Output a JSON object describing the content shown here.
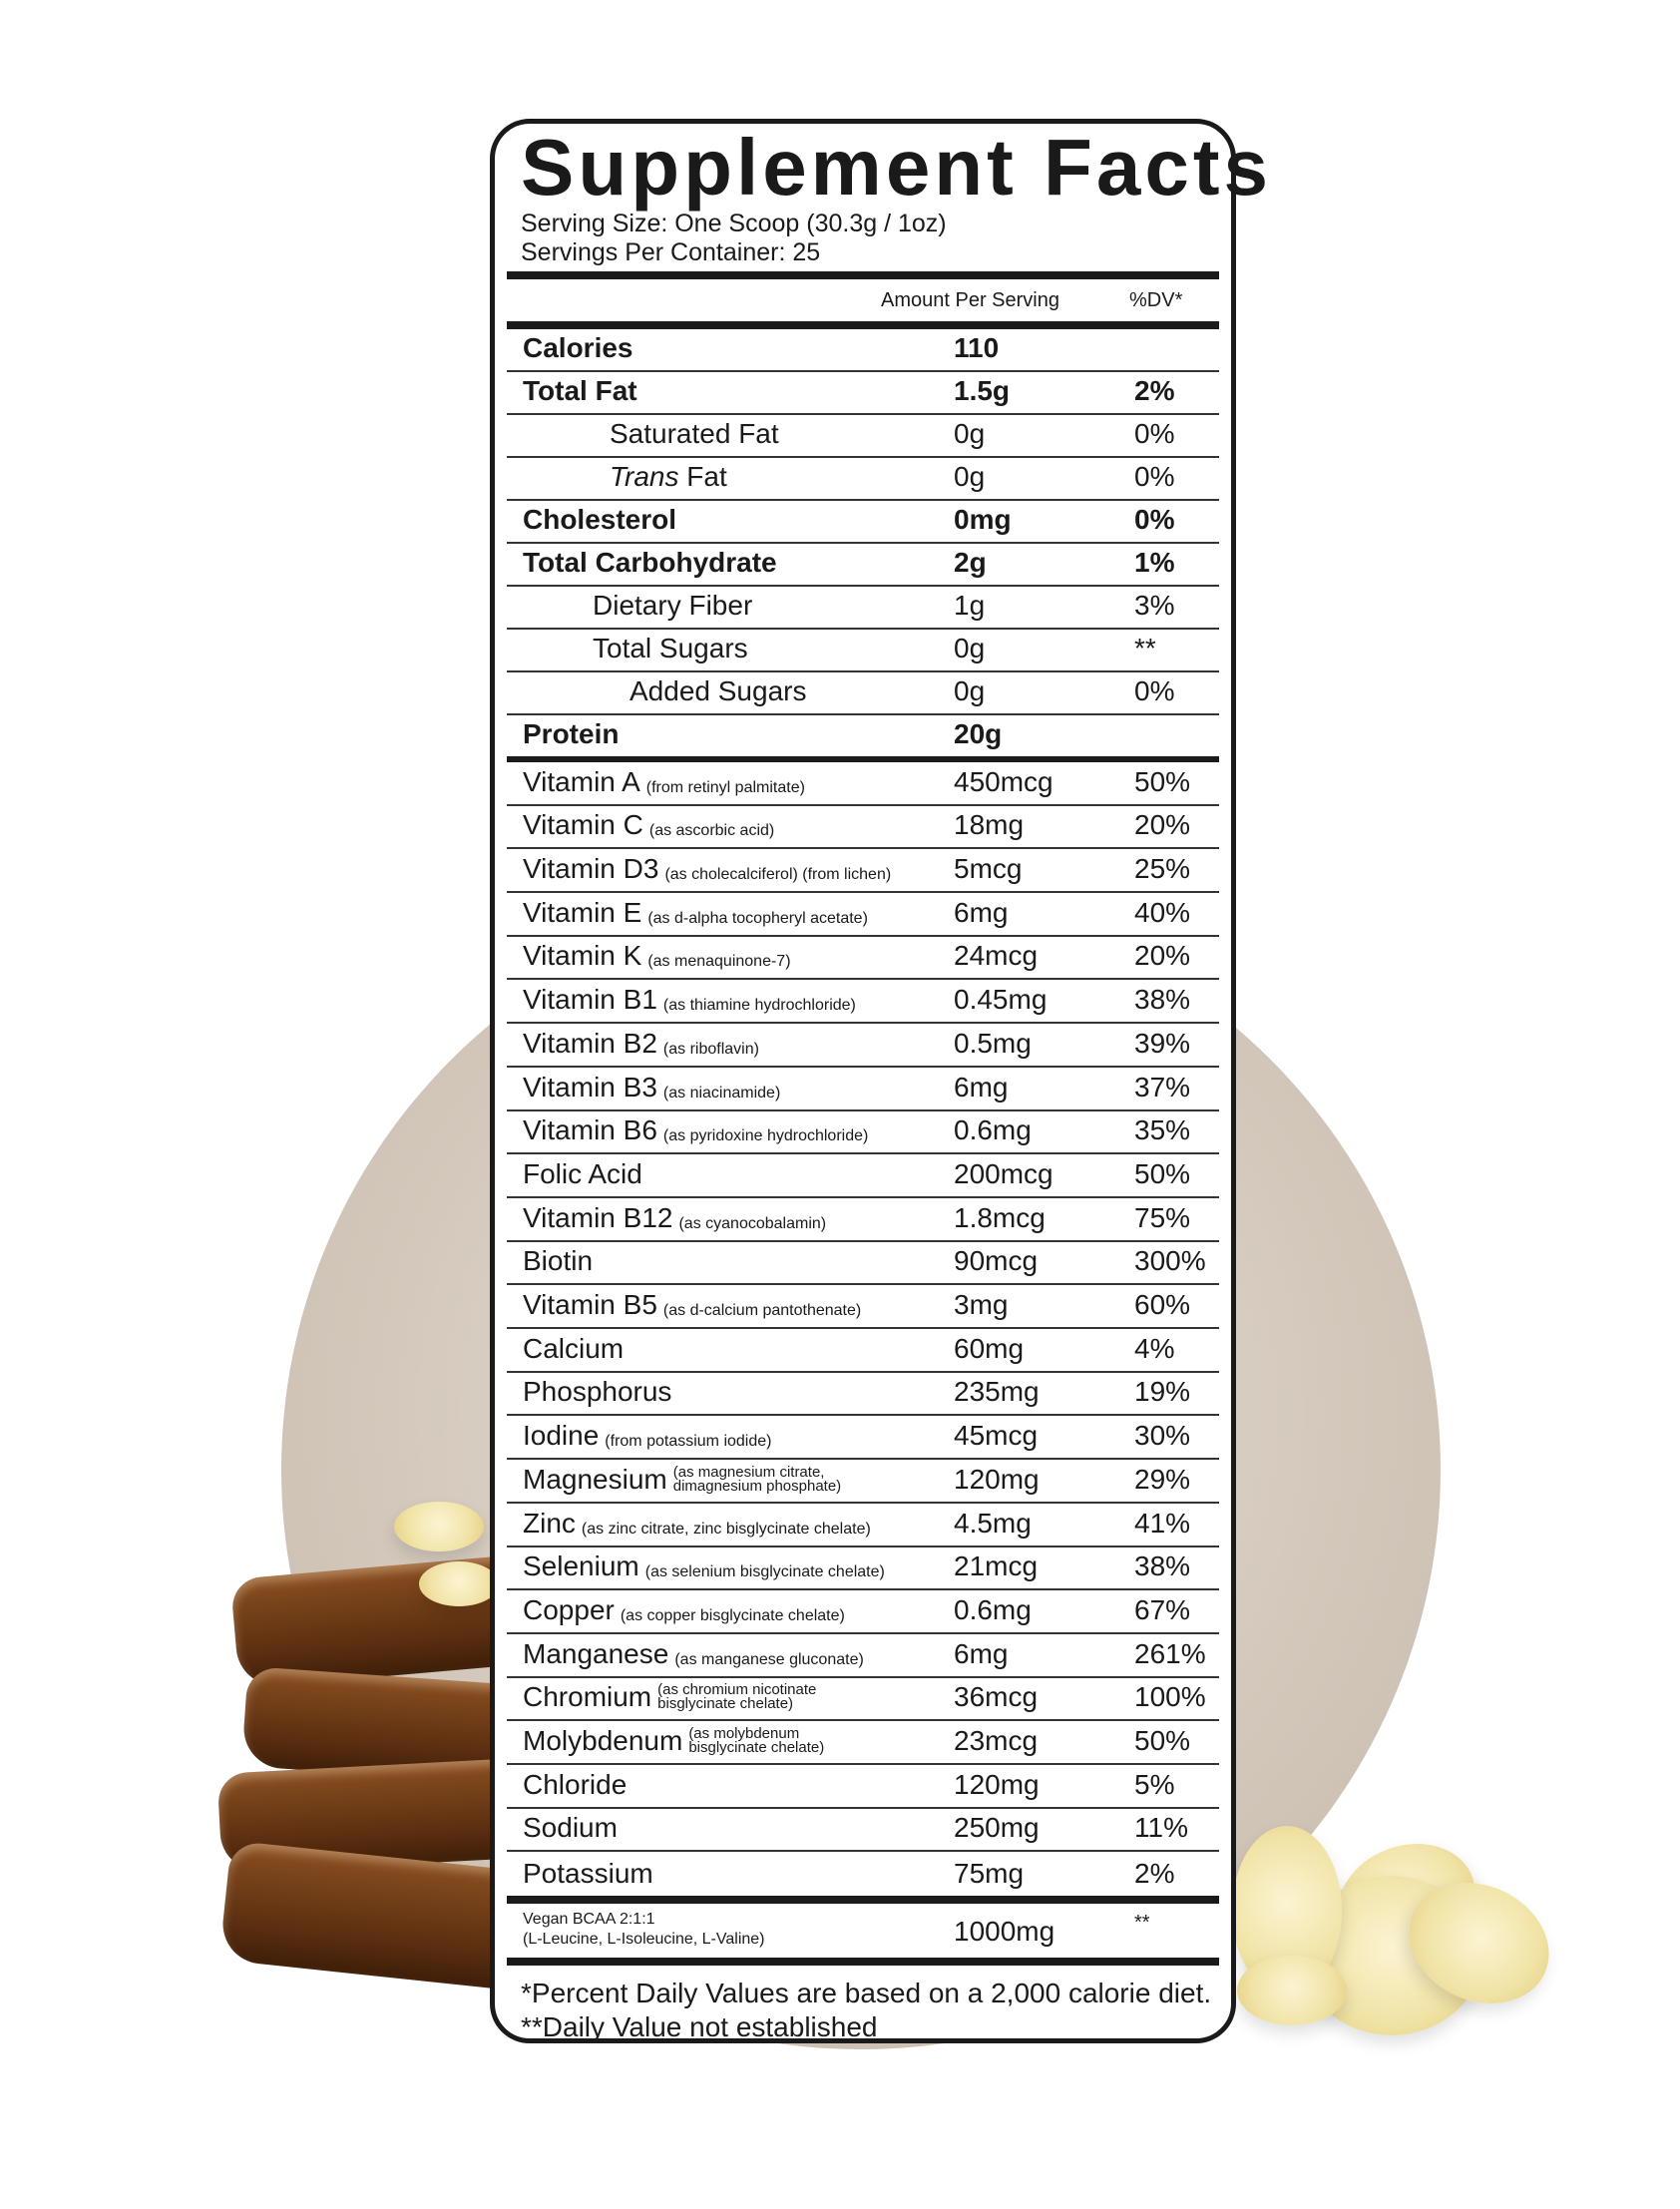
{
  "title": "Supplement Facts",
  "serving_size": "Serving Size: One Scoop (30.3g / 1oz)",
  "servings_per_container": "Servings Per Container: 25",
  "col_amount": "Amount Per Serving",
  "col_dv": "%DV*",
  "macros": [
    {
      "name": "Calories",
      "amount": "110",
      "dv": "",
      "bold": true,
      "indent": 0
    },
    {
      "name": "Total Fat",
      "amount": "1.5g",
      "dv": "2%",
      "bold": true,
      "indent": 0
    },
    {
      "name": "Saturated Fat",
      "amount": "0g",
      "dv": "0%",
      "indent": 2
    },
    {
      "name_italic": "Trans",
      "name": " Fat",
      "amount": "0g",
      "dv": "0%",
      "indent": 2
    },
    {
      "name": "Cholesterol",
      "amount": "0mg",
      "dv": "0%",
      "bold": true,
      "indent": 0
    },
    {
      "name": "Total Carbohydrate",
      "amount": "2g",
      "dv": "1%",
      "bold": true,
      "indent": 0
    },
    {
      "name": "Dietary Fiber",
      "amount": "1g",
      "dv": "3%",
      "indent": 1
    },
    {
      "name": "Total Sugars",
      "amount": "0g",
      "dv": "**",
      "indent": 1
    },
    {
      "name": "Added Sugars",
      "amount": "0g",
      "dv": "0%",
      "indent": 3
    },
    {
      "name": "Protein",
      "amount": "20g",
      "dv": "",
      "bold": true,
      "indent": 0
    }
  ],
  "micros": [
    {
      "name": "Vitamin A",
      "note": [
        "(from retinyl palmitate)"
      ],
      "amount": "450mcg",
      "dv": "50%"
    },
    {
      "name": "Vitamin C",
      "note": [
        "(as ascorbic acid)"
      ],
      "amount": "18mg",
      "dv": "20%"
    },
    {
      "name": "Vitamin D3",
      "note": [
        "(as cholecalciferol) (from lichen)"
      ],
      "amount": "5mcg",
      "dv": "25%"
    },
    {
      "name": "Vitamin E",
      "note": [
        "(as d-alpha tocopheryl acetate)"
      ],
      "amount": "6mg",
      "dv": "40%"
    },
    {
      "name": "Vitamin K",
      "note": [
        "(as menaquinone-7)"
      ],
      "amount": "24mcg",
      "dv": "20%"
    },
    {
      "name": "Vitamin B1",
      "note": [
        "(as thiamine hydrochloride)"
      ],
      "amount": "0.45mg",
      "dv": "38%"
    },
    {
      "name": "Vitamin B2",
      "note": [
        "(as riboflavin)"
      ],
      "amount": "0.5mg",
      "dv": "39%"
    },
    {
      "name": "Vitamin B3",
      "note": [
        "(as niacinamide)"
      ],
      "amount": "6mg",
      "dv": "37%"
    },
    {
      "name": "Vitamin B6",
      "note": [
        "(as pyridoxine hydrochloride)"
      ],
      "amount": "0.6mg",
      "dv": "35%"
    },
    {
      "name": "Folic Acid",
      "note": [],
      "amount": "200mcg",
      "dv": "50%"
    },
    {
      "name": "Vitamin B12",
      "note": [
        "(as cyanocobalamin)"
      ],
      "amount": "1.8mcg",
      "dv": "75%"
    },
    {
      "name": "Biotin",
      "note": [],
      "amount": "90mcg",
      "dv": "300%"
    },
    {
      "name": "Vitamin B5",
      "note": [
        "(as d-calcium pantothenate)"
      ],
      "amount": "3mg",
      "dv": "60%"
    },
    {
      "name": "Calcium",
      "note": [],
      "amount": "60mg",
      "dv": "4%"
    },
    {
      "name": "Phosphorus",
      "note": [],
      "amount": "235mg",
      "dv": "19%"
    },
    {
      "name": "Iodine",
      "note": [
        "(from potassium iodide)"
      ],
      "amount": "45mcg",
      "dv": "30%"
    },
    {
      "name": "Magnesium",
      "note": [
        "(as magnesium citrate,",
        "dimagnesium phosphate)"
      ],
      "amount": "120mg",
      "dv": "29%"
    },
    {
      "name": "Zinc",
      "note": [
        "(as zinc citrate, zinc bisglycinate chelate)"
      ],
      "amount": "4.5mg",
      "dv": "41%"
    },
    {
      "name": "Selenium",
      "note": [
        "(as selenium bisglycinate chelate)"
      ],
      "amount": "21mcg",
      "dv": "38%"
    },
    {
      "name": "Copper",
      "note": [
        "(as copper bisglycinate chelate)"
      ],
      "amount": "0.6mg",
      "dv": "67%"
    },
    {
      "name": "Manganese",
      "note": [
        "(as manganese gluconate)"
      ],
      "amount": "6mg",
      "dv": "261%"
    },
    {
      "name": "Chromium",
      "note": [
        "(as chromium nicotinate",
        "bisglycinate chelate)"
      ],
      "amount": "36mcg",
      "dv": "100%"
    },
    {
      "name": "Molybdenum",
      "note": [
        "(as molybdenum",
        "bisglycinate chelate)"
      ],
      "amount": "23mcg",
      "dv": "50%"
    },
    {
      "name": "Chloride",
      "note": [],
      "amount": "120mg",
      "dv": "5%"
    },
    {
      "name": "Sodium",
      "note": [],
      "amount": "250mg",
      "dv": "11%"
    },
    {
      "name": "Potassium",
      "note": [],
      "amount": "75mg",
      "dv": "2%"
    }
  ],
  "bcaa": {
    "name": "Vegan BCAA 2:1:1",
    "sub": "(L-Leucine, L-Isoleucine, L-Valine)",
    "amount": "1000mg",
    "dv": "**"
  },
  "footnotes": [
    "*Percent Daily Values are based on a 2,000 calorie diet.",
    "**Daily Value not established"
  ],
  "colors": {
    "background_circle": "#d3c8bb",
    "ink": "#1a1a1a"
  }
}
